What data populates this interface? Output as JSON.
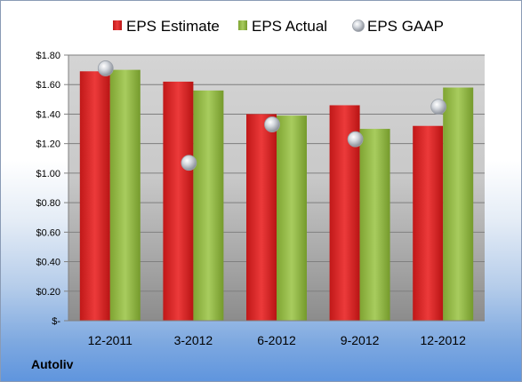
{
  "company": "Autoliv",
  "chart_data": {
    "type": "bar",
    "title": "",
    "xlabel": "",
    "ylabel": "",
    "categories": [
      "12-2011",
      "3-2012",
      "6-2012",
      "9-2012",
      "12-2012"
    ],
    "series": [
      {
        "name": "EPS Estimate",
        "kind": "bar",
        "color": "#d02020",
        "values": [
          1.69,
          1.62,
          1.4,
          1.46,
          1.32
        ]
      },
      {
        "name": "EPS Actual",
        "kind": "bar",
        "color": "#8db53c",
        "values": [
          1.7,
          1.56,
          1.39,
          1.3,
          1.58
        ]
      },
      {
        "name": "EPS GAAP",
        "kind": "scatter",
        "color": "#b8bcc4",
        "values": [
          1.71,
          1.07,
          1.33,
          1.23,
          1.45
        ]
      }
    ],
    "ylim": [
      0,
      1.8
    ],
    "yticks": [
      0,
      0.2,
      0.4,
      0.6,
      0.8,
      1.0,
      1.2,
      1.4,
      1.6,
      1.8
    ],
    "ytick_labels": [
      "$-",
      "$0.20",
      "$0.40",
      "$0.60",
      "$0.80",
      "$1.00",
      "$1.20",
      "$1.40",
      "$1.60",
      "$1.80"
    ],
    "grid": true,
    "legend": "top"
  }
}
